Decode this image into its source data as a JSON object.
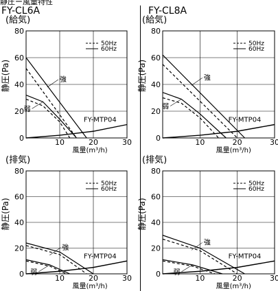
{
  "page_title_prefix": "静圧ー風量特性",
  "legend_labels": [
    "50Hz",
    "60Hz"
  ],
  "colors": {
    "lines": "#000000",
    "background": "#ffffff"
  },
  "chart_data": [
    {
      "type": "line",
      "model": "FY-CL6A",
      "mode": "(給気)",
      "ylabel": "静圧(Pa)",
      "xlabel": "風量(m³/h)",
      "xlim": [
        0,
        30
      ],
      "ylim": [
        0,
        80
      ],
      "xticks": [
        "10",
        "20",
        "30"
      ],
      "yticks": [
        "0",
        "20",
        "40",
        "60",
        "80"
      ],
      "grid": true,
      "legend": "top-right",
      "series": [
        {
          "name": "50Hz",
          "label": "強",
          "style": "dashed",
          "x": [
            0,
            15
          ],
          "y": [
            52,
            0
          ]
        },
        {
          "name": "60Hz",
          "label": "強",
          "style": "solid",
          "x": [
            0,
            18
          ],
          "y": [
            60,
            0
          ]
        },
        {
          "name": "50Hz",
          "label": "弱",
          "style": "dashed",
          "x": [
            0,
            5,
            10,
            13
          ],
          "y": [
            29,
            24,
            12,
            0
          ]
        },
        {
          "name": "60Hz",
          "label": "弱",
          "style": "solid",
          "x": [
            0,
            5,
            10,
            15
          ],
          "y": [
            32,
            27,
            14,
            0
          ]
        },
        {
          "name": "FY-MTP04",
          "style": "solid",
          "x": [
            0,
            10,
            20,
            30
          ],
          "y": [
            0,
            2,
            5,
            10
          ]
        }
      ],
      "annotations": [
        "強",
        "弱",
        "FY-MTP04"
      ]
    },
    {
      "type": "line",
      "model": "FY-CL8A",
      "mode": "(給気)",
      "ylabel": "静圧(Pa)",
      "xlabel": "風量(m³/h)",
      "xlim": [
        0,
        30
      ],
      "ylim": [
        0,
        80
      ],
      "xticks": [
        "10",
        "20",
        "30"
      ],
      "yticks": [
        "0",
        "20",
        "40",
        "60",
        "80"
      ],
      "grid": true,
      "legend": "top-right",
      "series": [
        {
          "name": "50Hz",
          "label": "強",
          "style": "dashed",
          "x": [
            0,
            20
          ],
          "y": [
            55,
            0
          ]
        },
        {
          "name": "60Hz",
          "label": "強",
          "style": "solid",
          "x": [
            0,
            22
          ],
          "y": [
            62,
            0
          ]
        },
        {
          "name": "50Hz",
          "label": "弱",
          "style": "dashed",
          "x": [
            0,
            5,
            10,
            15
          ],
          "y": [
            30,
            26,
            15,
            0
          ]
        },
        {
          "name": "60Hz",
          "label": "弱",
          "style": "solid",
          "x": [
            0,
            5,
            10,
            17
          ],
          "y": [
            34,
            29,
            18,
            0
          ]
        },
        {
          "name": "FY-MTP04",
          "style": "solid",
          "x": [
            0,
            10,
            20,
            30
          ],
          "y": [
            0,
            2,
            5,
            10
          ]
        }
      ],
      "annotations": [
        "強",
        "弱",
        "FY-MTP04"
      ]
    },
    {
      "type": "line",
      "model": "FY-CL6A",
      "mode": "(排気)",
      "ylabel": "静圧(Pa)",
      "xlabel": "風量(m³/h)",
      "xlim": [
        0,
        30
      ],
      "ylim": [
        0,
        80
      ],
      "xticks": [
        "10",
        "20",
        "30"
      ],
      "yticks": [
        "0",
        "20",
        "40",
        "60",
        "80"
      ],
      "grid": true,
      "legend": "top-right",
      "series": [
        {
          "name": "50Hz",
          "label": "強",
          "style": "dashed",
          "x": [
            0,
            10,
            18
          ],
          "y": [
            22,
            15,
            0
          ]
        },
        {
          "name": "60Hz",
          "label": "強",
          "style": "solid",
          "x": [
            0,
            10,
            20
          ],
          "y": [
            24,
            17,
            0
          ]
        },
        {
          "name": "50Hz",
          "label": "弱",
          "style": "dashed",
          "x": [
            0,
            7,
            12
          ],
          "y": [
            10,
            6,
            0
          ]
        },
        {
          "name": "60Hz",
          "label": "弱",
          "style": "solid",
          "x": [
            0,
            7,
            13
          ],
          "y": [
            11,
            7,
            0
          ]
        },
        {
          "name": "FY-MTP04",
          "style": "solid",
          "x": [
            0,
            10,
            20,
            30
          ],
          "y": [
            0,
            2,
            5,
            10
          ]
        }
      ],
      "annotations": [
        "強",
        "弱",
        "FY-MTP04"
      ]
    },
    {
      "type": "line",
      "model": "FY-CL8A",
      "mode": "(排気)",
      "ylabel": "静圧(Pa)",
      "xlabel": "風量(m³/h)",
      "xlim": [
        0,
        30
      ],
      "ylim": [
        0,
        80
      ],
      "xticks": [
        "10",
        "20",
        "30"
      ],
      "yticks": [
        "0",
        "20",
        "40",
        "60",
        "80"
      ],
      "grid": true,
      "legend": "top-right",
      "series": [
        {
          "name": "50Hz",
          "label": "強",
          "style": "dashed",
          "x": [
            0,
            10,
            20
          ],
          "y": [
            27,
            18,
            0
          ]
        },
        {
          "name": "60Hz",
          "label": "強",
          "style": "solid",
          "x": [
            0,
            10,
            22
          ],
          "y": [
            30,
            20,
            0
          ]
        },
        {
          "name": "50Hz",
          "label": "弱",
          "style": "dashed",
          "x": [
            0,
            8,
            14
          ],
          "y": [
            10,
            6,
            0
          ]
        },
        {
          "name": "60Hz",
          "label": "弱",
          "style": "solid",
          "x": [
            0,
            8,
            16
          ],
          "y": [
            11,
            7,
            0
          ]
        },
        {
          "name": "FY-MTP04",
          "style": "solid",
          "x": [
            0,
            10,
            20,
            30
          ],
          "y": [
            0,
            2,
            5,
            10
          ]
        }
      ],
      "annotations": [
        "強",
        "弱",
        "FY-MTP04"
      ]
    }
  ]
}
